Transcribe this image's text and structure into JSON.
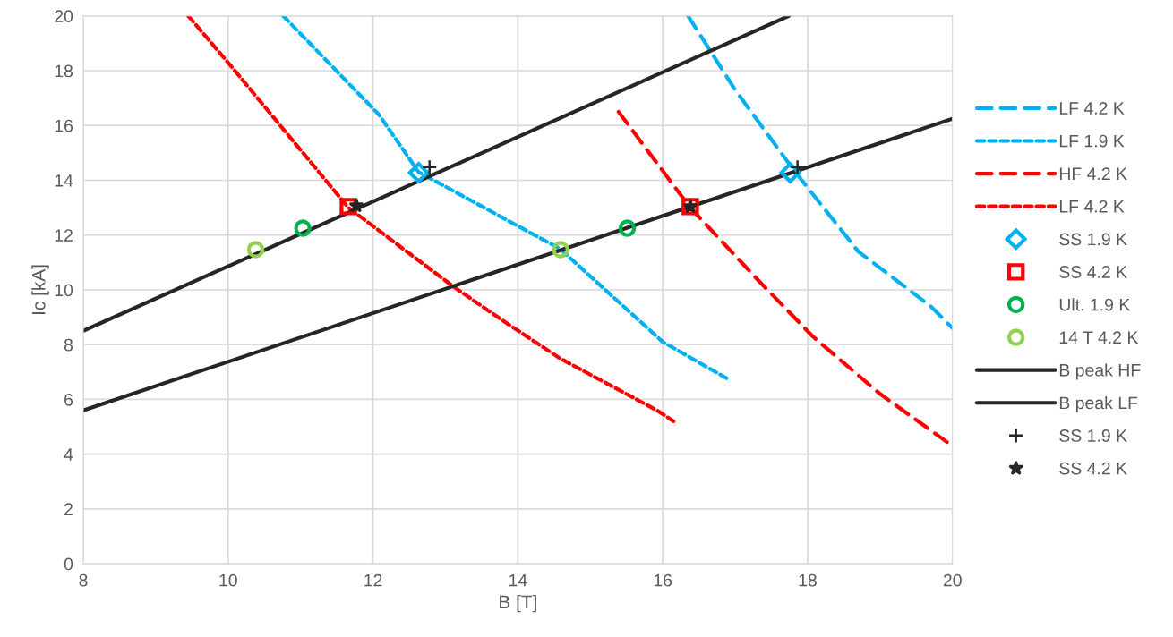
{
  "chart_data": {
    "type": "line",
    "xlabel": "B [T]",
    "ylabel": "Ic [kA]",
    "xlim": [
      8,
      20
    ],
    "xticks": [
      8,
      10,
      12,
      14,
      16,
      18,
      20
    ],
    "ylim": [
      0,
      20
    ],
    "yticks": [
      0,
      2,
      4,
      6,
      8,
      10,
      12,
      14,
      16,
      18,
      20
    ],
    "grid": true,
    "legend": "right",
    "series": [
      {
        "name": "LF 4.2 K",
        "color": "#00b0f0",
        "line_style": "dashed",
        "marker": "none",
        "x": [
          16.35,
          17.0,
          17.8,
          18.7,
          19.7,
          20
        ],
        "values": [
          20,
          17.3,
          14.4,
          11.4,
          9.4,
          8.6
        ]
      },
      {
        "name": "LF 1.9 K",
        "color": "#00b0f0",
        "line_style": "dotted",
        "marker": "none",
        "x": [
          10.76,
          12.08,
          12.63,
          14.58,
          16.0,
          16.93
        ],
        "values": [
          20,
          16.4,
          14.3,
          11.5,
          8.1,
          6.7
        ]
      },
      {
        "name": "HF 4.2 K",
        "color": "#ff0000",
        "line_style": "dashed",
        "marker": "none",
        "x": [
          15.39,
          16.38,
          17.3,
          18.07,
          19.0,
          20
        ],
        "values": [
          16.5,
          13.0,
          10.4,
          8.3,
          6.2,
          4.3
        ]
      },
      {
        "name": "LF 4.2 K",
        "color": "#ff0000",
        "line_style": "dotted",
        "marker": "none",
        "x": [
          9.45,
          10.03,
          11.66,
          13.12,
          13.78,
          14.58,
          15.92,
          16.15
        ],
        "values": [
          20,
          18.2,
          13.0,
          10.1,
          8.9,
          7.5,
          5.6,
          5.2
        ]
      },
      {
        "name": "SS 1.9 K",
        "type": "scatter",
        "color": "#00b0f0",
        "marker": "diamond",
        "x": [
          12.63,
          17.76
        ],
        "values": [
          14.28,
          14.28
        ]
      },
      {
        "name": "SS 4.2 K",
        "type": "scatter",
        "color": "#ff0000",
        "marker": "square",
        "x": [
          11.66,
          16.38
        ],
        "values": [
          13.04,
          13.04
        ]
      },
      {
        "name": "Ult. 1.9 K",
        "type": "scatter",
        "color": "#00b050",
        "marker": "circle",
        "x": [
          11.03,
          15.51
        ],
        "values": [
          12.25,
          12.25
        ]
      },
      {
        "name": "14 T 4.2 K",
        "type": "scatter",
        "color": "#92d050",
        "marker": "circle",
        "x": [
          10.38,
          14.59
        ],
        "values": [
          11.47,
          11.47
        ]
      },
      {
        "name": "B peak HF",
        "color": "#262626",
        "line_style": "solid",
        "marker": "none",
        "x": [
          8,
          17.74
        ],
        "values": [
          8.5,
          20
        ]
      },
      {
        "name": "B peak LF",
        "color": "#262626",
        "line_style": "solid",
        "marker": "none",
        "x": [
          8,
          20
        ],
        "values": [
          5.6,
          16.25
        ]
      },
      {
        "name": "SS 1.9 K",
        "type": "scatter",
        "color": "#262626",
        "marker": "cross",
        "x": [
          12.78,
          17.86
        ],
        "values": [
          14.48,
          14.48
        ]
      },
      {
        "name": "SS 4.2 K",
        "type": "scatter",
        "color": "#262626",
        "marker": "star",
        "x": [
          11.77,
          16.38
        ],
        "values": [
          13.07,
          13.04
        ]
      }
    ]
  }
}
